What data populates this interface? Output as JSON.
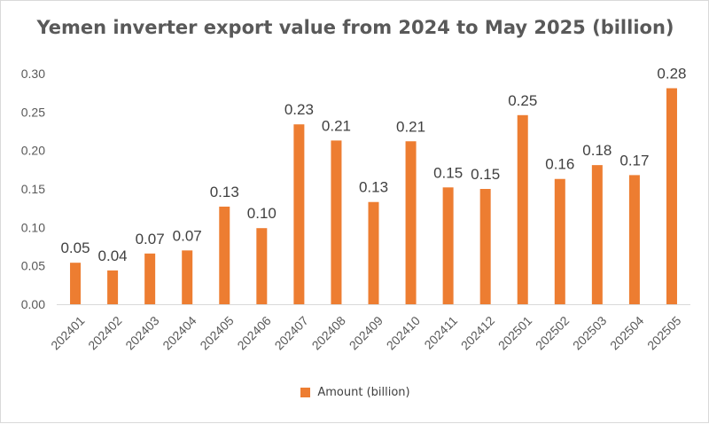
{
  "chart_data": {
    "type": "bar",
    "title": "Yemen inverter export value from 2024 to May 2025 (billion)",
    "categories": [
      "202401",
      "202402",
      "202403",
      "202404",
      "202405",
      "202406",
      "202407",
      "202408",
      "202409",
      "202410",
      "202411",
      "202412",
      "202501",
      "202502",
      "202503",
      "202504",
      "202505"
    ],
    "series": [
      {
        "name": "Amount (billion)",
        "values": [
          0.054,
          0.044,
          0.066,
          0.07,
          0.127,
          0.099,
          0.234,
          0.213,
          0.133,
          0.212,
          0.152,
          0.15,
          0.246,
          0.163,
          0.181,
          0.168,
          0.281
        ],
        "labels": [
          "0.05",
          "0.04",
          "0.07",
          "0.07",
          "0.13",
          "0.10",
          "0.23",
          "0.21",
          "0.13",
          "0.21",
          "0.15",
          "0.15",
          "0.25",
          "0.16",
          "0.18",
          "0.17",
          "0.28"
        ]
      }
    ],
    "y_ticks": [
      "0.00",
      "0.05",
      "0.10",
      "0.15",
      "0.20",
      "0.25",
      "0.30"
    ],
    "ylim": [
      0,
      0.3
    ],
    "xlabel": "",
    "ylabel": "",
    "grid": false,
    "legend_position": "bottom",
    "bar_color": "#ED7D31"
  }
}
